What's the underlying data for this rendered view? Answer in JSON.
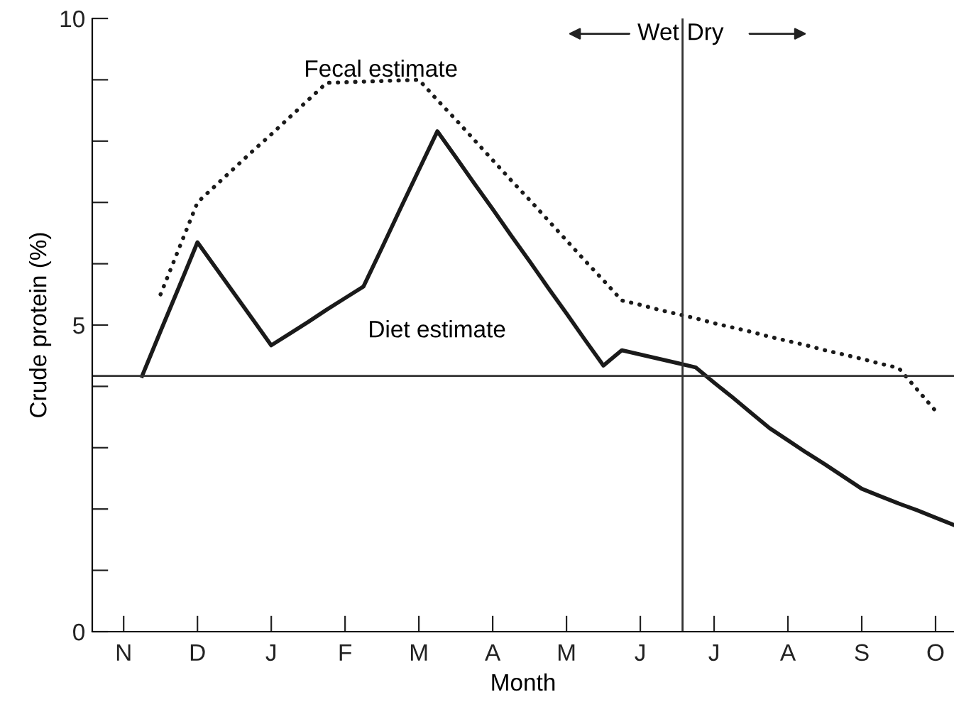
{
  "chart_data": {
    "type": "line",
    "xlabel": "Month",
    "ylabel": "Crude protein (%)",
    "categories": [
      null,
      "N",
      null,
      null,
      null,
      "D",
      null,
      null,
      null,
      "J",
      null,
      null,
      null,
      "F",
      null,
      null,
      null,
      "M",
      null,
      null,
      null,
      "A",
      null,
      null,
      null,
      "M",
      null,
      null,
      null,
      "J",
      null,
      null,
      null,
      "J",
      null,
      null,
      null,
      "A",
      null,
      null,
      null,
      "S",
      null,
      null,
      null,
      "O",
      null
    ],
    "ylim": [
      0,
      10
    ],
    "yticks": [
      {
        "value": 0,
        "label": "0"
      },
      {
        "value": 1,
        "label": null
      },
      {
        "value": 2,
        "label": null
      },
      {
        "value": 3,
        "label": null
      },
      {
        "value": 4,
        "label": null
      },
      {
        "value": 5,
        "label": "5"
      },
      {
        "value": 6,
        "label": null
      },
      {
        "value": 7,
        "label": null
      },
      {
        "value": 8,
        "label": null
      },
      {
        "value": 9,
        "label": null
      },
      {
        "value": 10,
        "label": "10"
      }
    ],
    "series": [
      {
        "color": "#1a1a1a",
        "line_style": "dotted",
        "values": [
          null,
          null,
          null,
          5.5,
          6.25,
          7.0,
          7.28,
          7.56,
          7.84,
          8.11,
          8.39,
          8.67,
          8.95,
          8.96,
          8.97,
          8.98,
          8.99,
          9.0,
          8.67,
          8.35,
          8.02,
          7.69,
          7.36,
          7.04,
          6.71,
          6.38,
          6.05,
          5.73,
          5.4,
          5.33,
          5.25,
          5.18,
          5.11,
          5.03,
          4.96,
          4.89,
          4.81,
          4.74,
          4.67,
          4.59,
          4.52,
          4.45,
          4.37,
          4.3,
          3.95,
          3.6,
          null
        ]
      },
      {
        "color": "#1a1a1a",
        "line_style": "solid",
        "values": [
          null,
          null,
          4.17,
          4.9,
          5.62,
          6.35,
          5.93,
          5.51,
          5.09,
          4.67,
          4.86,
          5.05,
          5.25,
          5.44,
          5.63,
          6.26,
          6.9,
          7.53,
          8.16,
          7.74,
          7.31,
          6.89,
          6.46,
          6.04,
          5.61,
          5.19,
          4.76,
          4.34,
          4.59,
          4.52,
          4.45,
          4.38,
          4.31,
          4.06,
          3.82,
          3.57,
          3.32,
          3.12,
          2.92,
          2.73,
          2.53,
          2.33,
          2.21,
          2.09,
          1.98,
          1.86,
          1.74
        ]
      }
    ],
    "ref_lines": [
      {
        "axis": "y",
        "value": 4.17,
        "color": "#333333"
      }
    ],
    "annotations": [
      "Fecal estimate",
      "Diet estimate",
      "Wet",
      "Dry"
    ],
    "grid": false,
    "legend": false
  }
}
